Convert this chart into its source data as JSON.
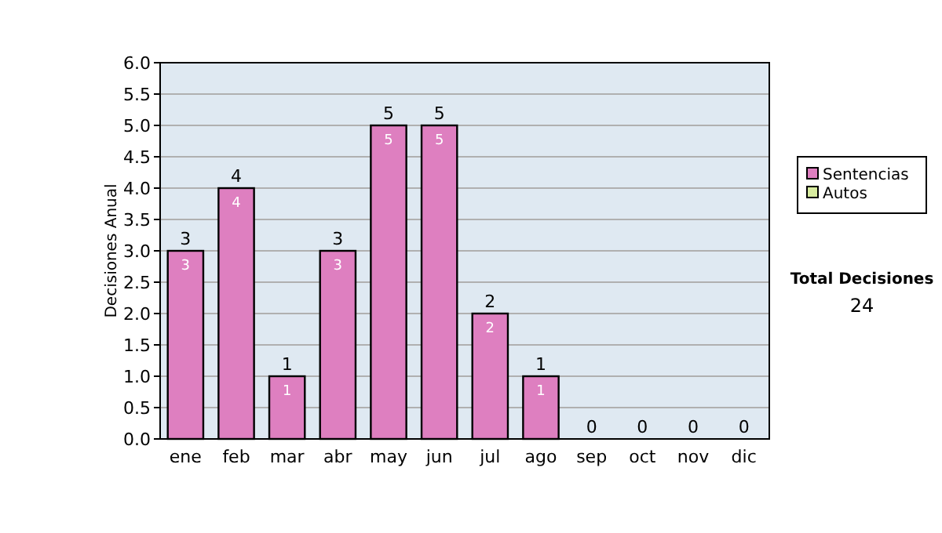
{
  "chart_data": {
    "type": "bar",
    "stacked": true,
    "ylabel": "Decisiones Anual",
    "categories": [
      "ene",
      "feb",
      "mar",
      "abr",
      "may",
      "jun",
      "jul",
      "ago",
      "sep",
      "oct",
      "nov",
      "dic"
    ],
    "series": [
      {
        "name": "Sentencias",
        "color": "#de7fc0",
        "values": [
          3,
          4,
          1,
          3,
          5,
          5,
          2,
          1,
          0,
          0,
          0,
          0
        ],
        "value_labels": [
          "3",
          "4",
          "1",
          "3",
          "5",
          "5",
          "2",
          "1",
          null,
          null,
          null,
          null
        ]
      },
      {
        "name": "Autos",
        "color": "#d8eca0",
        "values": [
          0,
          0,
          0,
          0,
          0,
          0,
          0,
          0,
          0,
          0,
          0,
          0
        ]
      }
    ],
    "totals": [
      "3",
      "4",
      "1",
      "3",
      "5",
      "5",
      "2",
      "1",
      "0",
      "0",
      "0",
      "0"
    ],
    "ylim": [
      0,
      6
    ],
    "yticks": [
      {
        "value": 0,
        "label": "0.0"
      },
      {
        "value": 0.5,
        "label": "0.5"
      },
      {
        "value": 1,
        "label": "1.0"
      },
      {
        "value": 1.5,
        "label": "1.5"
      },
      {
        "value": 2,
        "label": "2.0"
      },
      {
        "value": 2.5,
        "label": "2.5"
      },
      {
        "value": 3,
        "label": "3.0"
      },
      {
        "value": 3.5,
        "label": "3.5"
      },
      {
        "value": 4,
        "label": "4.0"
      },
      {
        "value": 4.5,
        "label": "4.5"
      },
      {
        "value": 5,
        "label": "5.0"
      },
      {
        "value": 5.5,
        "label": "5.5"
      },
      {
        "value": 6,
        "label": "6.0"
      }
    ],
    "grid": "y",
    "legend": "right",
    "annotations": [
      "Total Decisiones",
      "24"
    ]
  }
}
